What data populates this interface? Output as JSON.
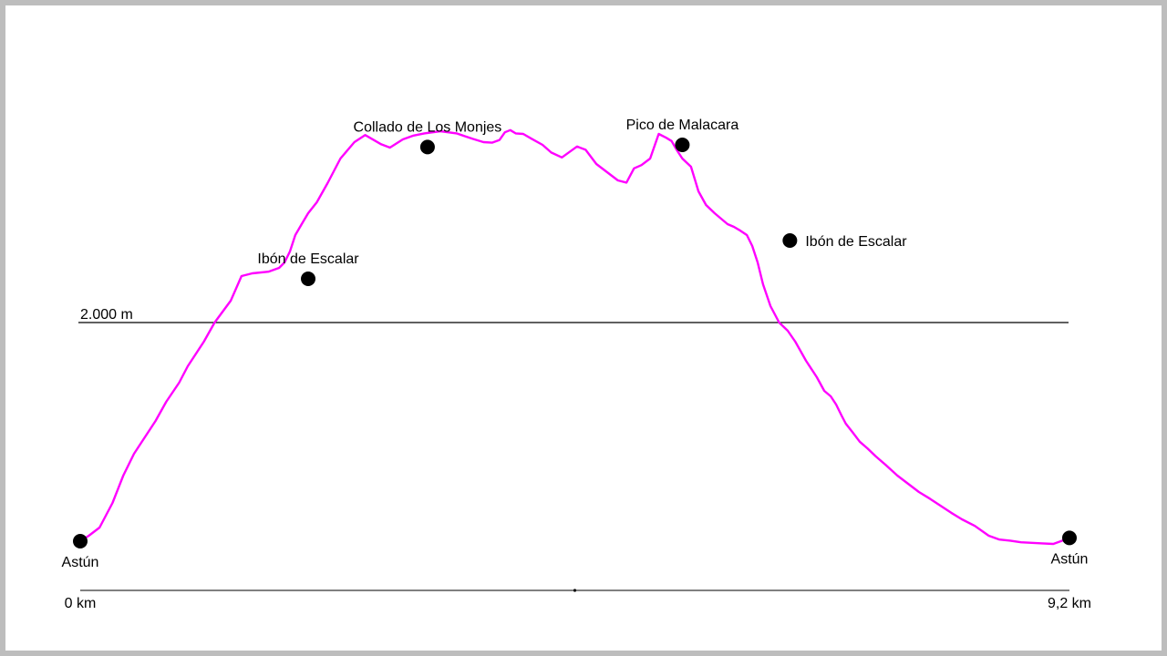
{
  "chart_data": {
    "type": "line",
    "title": "",
    "xlabel": "",
    "ylabel": "",
    "x_unit": "km",
    "xlim": [
      0,
      9.2
    ],
    "x_ticks": [
      {
        "value": 0,
        "label": "0 km"
      },
      {
        "value": 9.2,
        "label": "9,2 km"
      }
    ],
    "reference_line": {
      "value": 2000,
      "label": "2.000 m"
    },
    "line_color": "#ff00ff",
    "grid": false,
    "legend": "none",
    "series": [
      {
        "x": [
          0,
          0.08,
          0.18,
          0.3,
          0.4,
          0.5,
          0.6,
          0.7,
          0.8,
          0.92,
          1.0,
          1.15,
          1.25,
          1.4,
          1.5,
          1.6,
          1.75,
          1.85,
          1.9,
          1.95,
          2.0,
          2.06,
          2.12,
          2.2,
          2.3,
          2.42,
          2.55,
          2.65,
          2.8,
          2.88,
          3.0,
          3.1,
          3.2,
          3.35,
          3.5,
          3.65,
          3.75,
          3.83,
          3.9,
          3.95,
          4.0,
          4.05,
          4.12,
          4.2,
          4.3,
          4.38,
          4.48,
          4.55,
          4.62,
          4.7,
          4.8,
          4.9,
          5.0,
          5.08,
          5.15,
          5.22,
          5.3,
          5.38,
          5.45,
          5.5,
          5.55,
          5.6,
          5.68,
          5.75,
          5.82,
          5.9,
          5.96,
          6.02,
          6.08,
          6.14,
          6.2,
          6.25,
          6.3,
          6.35,
          6.42,
          6.5,
          6.58,
          6.65,
          6.75,
          6.85,
          6.92,
          6.98,
          7.03,
          7.08,
          7.12,
          7.18,
          7.25,
          7.32,
          7.4,
          7.5,
          7.6,
          7.7,
          7.8,
          7.9,
          8.0,
          8.1,
          8.2,
          8.32,
          8.45,
          8.55,
          8.65,
          8.75,
          8.85,
          8.95,
          9.05,
          9.12,
          9.2
        ],
        "y": [
          1600,
          1610,
          1625,
          1670,
          1720,
          1760,
          1790,
          1820,
          1855,
          1890,
          1920,
          1965,
          2000,
          2040,
          2085,
          2090,
          2093,
          2100,
          2110,
          2130,
          2160,
          2180,
          2200,
          2220,
          2255,
          2300,
          2330,
          2343,
          2326,
          2320,
          2335,
          2342,
          2346,
          2350,
          2346,
          2336,
          2330,
          2329,
          2334,
          2348,
          2352,
          2346,
          2345,
          2336,
          2325,
          2311,
          2302,
          2312,
          2322,
          2316,
          2290,
          2275,
          2260,
          2256,
          2282,
          2288,
          2300,
          2345,
          2338,
          2332,
          2315,
          2300,
          2285,
          2240,
          2215,
          2200,
          2190,
          2180,
          2175,
          2168,
          2160,
          2140,
          2110,
          2070,
          2030,
          2000,
          1985,
          1965,
          1930,
          1900,
          1875,
          1865,
          1850,
          1830,
          1815,
          1800,
          1782,
          1770,
          1755,
          1738,
          1720,
          1705,
          1690,
          1678,
          1665,
          1652,
          1640,
          1628,
          1610,
          1603,
          1601,
          1598,
          1597,
          1596,
          1595,
          1600,
          1606
        ]
      }
    ],
    "waypoints": [
      {
        "name": "Astún",
        "x": 0,
        "y": 1600,
        "label_pos": "below"
      },
      {
        "name": "Ibón de Escalar",
        "x": 2.12,
        "y": 2080,
        "label_pos": "above"
      },
      {
        "name": "Collado de Los Monjes",
        "x": 3.23,
        "y": 2321,
        "label_pos": "above"
      },
      {
        "name": "Pico de Malacara",
        "x": 5.6,
        "y": 2325,
        "label_pos": "above"
      },
      {
        "name": "Ibón de Escalar",
        "x": 6.6,
        "y": 2150,
        "label_pos": "right"
      },
      {
        "name": "Astún",
        "x": 9.2,
        "y": 1606,
        "label_pos": "below"
      }
    ]
  }
}
